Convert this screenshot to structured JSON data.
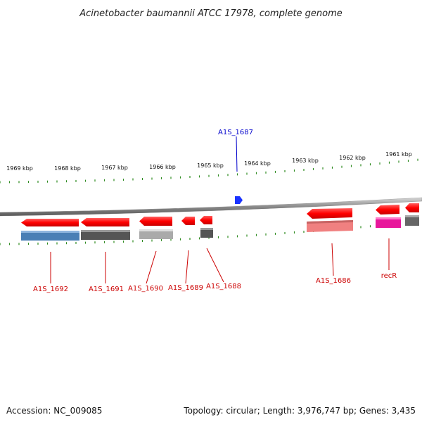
{
  "title": "Acinetobacter baumannii ATCC 17978, complete genome",
  "footer": {
    "accession": "Accession: NC_009085",
    "stats": "Topology: circular; Length: 3,976,747 bp; Genes: 3,435"
  },
  "colors": {
    "forward_gene": "#ff0000",
    "reverse_gene": "#e01010",
    "label_red": "#cc0000",
    "label_blue": "#0000cc",
    "tick_green": "#2e8b20",
    "backbone": "#888888",
    "marker_blue": "#1a33ff"
  },
  "ruler_ticks": [
    "1969 kbp",
    "1968 kbp",
    "1967 kbp",
    "1966 kbp",
    "1965 kbp",
    "1964 kbp",
    "1963 kbp",
    "1962 kbp",
    "1961 kbp"
  ],
  "genes": [
    {
      "name": "A1S_1692",
      "strand": "-",
      "color": "#ff0000",
      "product_color": "#4a7fb5"
    },
    {
      "name": "A1S_1691",
      "strand": "-",
      "color": "#ff0000",
      "product_color": "#555555"
    },
    {
      "name": "A1S_1690",
      "strand": "-",
      "color": "#ff0000",
      "product_color": "#aaaaaa"
    },
    {
      "name": "A1S_1689",
      "strand": "-",
      "color": "#ff0000",
      "product_color": ""
    },
    {
      "name": "A1S_1688",
      "strand": "-",
      "color": "#ff0000",
      "product_color": "#555555"
    },
    {
      "name": "A1S_1687",
      "strand": "+",
      "color": "#1a33ff",
      "product_color": ""
    },
    {
      "name": "A1S_1686",
      "strand": "-",
      "color": "#ff0000",
      "product_color": "#f08080"
    },
    {
      "name": "recR",
      "strand": "-",
      "color": "#ff0000",
      "product_color": "#e8179b"
    },
    {
      "name": "",
      "strand": "-",
      "color": "#ff0000",
      "product_color": "#666666"
    }
  ]
}
